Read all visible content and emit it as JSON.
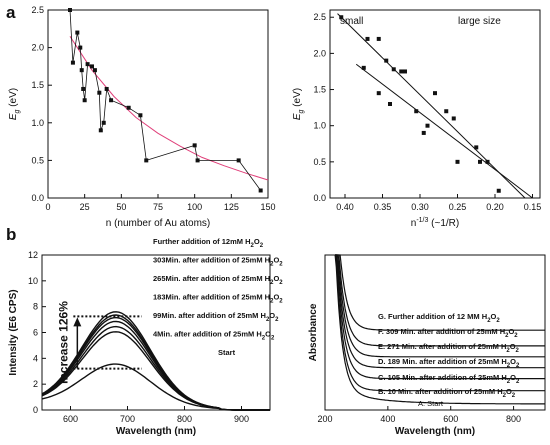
{
  "panels": [
    {
      "label": "a"
    },
    {
      "label": "b"
    }
  ],
  "chart_data": [
    {
      "id": "a-left",
      "type": "scatter",
      "xlabel": "n (number of Au atoms)",
      "ylabel": "E",
      "ylabel_sub": "g",
      "ylabel_unit": " (eV)",
      "xlim": [
        0,
        150
      ],
      "ylim": [
        0,
        2.5
      ],
      "xticks": [
        0,
        25,
        50,
        75,
        100,
        125,
        150
      ],
      "yticks": [
        0.0,
        0.5,
        1.0,
        1.5,
        2.0,
        2.5
      ],
      "x": [
        15,
        17,
        20,
        22,
        23,
        24,
        25,
        27,
        30,
        32,
        35,
        36,
        38,
        40,
        43,
        55,
        63,
        67,
        100,
        102,
        130,
        145
      ],
      "y": [
        2.5,
        1.8,
        2.2,
        2.0,
        1.7,
        1.45,
        1.3,
        1.78,
        1.75,
        1.7,
        1.4,
        0.9,
        1.0,
        1.45,
        1.3,
        1.2,
        1.1,
        0.5,
        0.7,
        0.5,
        0.5,
        0.1
      ],
      "fit_curve": {
        "x": [
          15,
          30,
          45,
          60,
          75,
          90,
          105,
          120,
          135,
          150
        ],
        "y": [
          2.15,
          1.7,
          1.35,
          1.07,
          0.86,
          0.69,
          0.54,
          0.43,
          0.33,
          0.24
        ],
        "color": "#e0407a"
      },
      "color": "#111111"
    },
    {
      "id": "a-right",
      "type": "scatter",
      "xlabel": "n",
      "xlabel_sup": "-1/3",
      "xlabel_suffix": " (~1/R)",
      "ylabel": "E",
      "ylabel_sub": "g",
      "ylabel_unit": " (eV)",
      "xlim": [
        0.42,
        0.14
      ],
      "ylim": [
        0,
        2.6
      ],
      "xticks": [
        0.4,
        0.35,
        0.3,
        0.25,
        0.2,
        0.15
      ],
      "yticks": [
        0.0,
        0.5,
        1.0,
        1.5,
        2.0,
        2.5
      ],
      "annotations": [
        {
          "text": "small"
        },
        {
          "text": "large size"
        }
      ],
      "x": [
        0.405,
        0.375,
        0.355,
        0.345,
        0.335,
        0.325,
        0.32,
        0.34,
        0.355,
        0.37,
        0.305,
        0.295,
        0.29,
        0.28,
        0.265,
        0.255,
        0.225,
        0.22,
        0.21,
        0.195,
        0.25
      ],
      "y": [
        2.5,
        1.8,
        2.2,
        1.9,
        1.78,
        1.75,
        1.75,
        1.3,
        1.45,
        2.2,
        1.2,
        0.9,
        1.0,
        1.45,
        1.2,
        1.1,
        0.7,
        0.5,
        0.5,
        0.1,
        0.5
      ],
      "fit_lines": [
        {
          "x": [
            0.41,
            0.16
          ],
          "y": [
            2.55,
            0.0
          ]
        },
        {
          "x": [
            0.385,
            0.15
          ],
          "y": [
            1.85,
            0.0
          ]
        }
      ],
      "color": "#111111"
    },
    {
      "id": "b-left",
      "type": "line",
      "xlabel": "Wavelength (nm)",
      "ylabel": "Intensity (E6 CPS)",
      "xlim": [
        550,
        950
      ],
      "ylim": [
        0,
        12
      ],
      "xticks": [
        600,
        700,
        800,
        900
      ],
      "yticks": [
        0,
        2,
        4,
        6,
        8,
        10,
        12
      ],
      "peak_x": 680,
      "series": [
        {
          "peak": 3.2,
          "label": "Start"
        },
        {
          "peak": 5.7,
          "label": "4Min. after addition of 25mM H",
          "sub": "2",
          "tail": "O",
          "sub2": "2"
        },
        {
          "peak": 6.1,
          "label": "99Min. after addition of 25mM H",
          "sub": "2",
          "tail": "O",
          "sub2": "2"
        },
        {
          "peak": 6.5,
          "label": "183Min. after addition of 25mM H",
          "sub": "2",
          "tail": "O",
          "sub2": "2"
        },
        {
          "peak": 6.8,
          "label": "265Min. after addition of 25mM H",
          "sub": "2",
          "tail": "O",
          "sub2": "2"
        },
        {
          "peak": 7.0,
          "label": "303Min. after addition of 25mM H",
          "sub": "2",
          "tail": "O",
          "sub2": "2"
        },
        {
          "peak": 7.25,
          "label": "Further addition of 12mM H",
          "sub": "2",
          "tail": "O",
          "sub2": "2"
        }
      ],
      "annotation": "Increase 126%"
    },
    {
      "id": "b-right",
      "type": "line",
      "xlabel": "Wavelength (nm)",
      "ylabel": "Absorbance",
      "xlim": [
        200,
        900
      ],
      "xticks": [
        200,
        400,
        600,
        800
      ],
      "series": [
        {
          "letter": "A.",
          "label": "Start",
          "plateau": 0.05
        },
        {
          "letter": "B.",
          "label": "10 Min. after addition of 25mM H",
          "sub": "2",
          "tail": "O",
          "sub2": "2",
          "plateau": 0.16
        },
        {
          "letter": "C.",
          "label": "105 Min. after addition of 25mM H",
          "sub": "2",
          "tail": "O",
          "sub2": "2",
          "plateau": 0.26
        },
        {
          "letter": "D.",
          "label": "189 Min. after addition of 25mM H",
          "sub": "2",
          "tail": "O",
          "sub2": "2",
          "plateau": 0.35
        },
        {
          "letter": "E.",
          "label": "271 Min. after addition of 25mM H",
          "sub": "2",
          "tail": "O",
          "sub2": "2",
          "plateau": 0.44
        },
        {
          "letter": "F.",
          "label": "309 Min. after addition of 25mM H",
          "sub": "2",
          "tail": "O",
          "sub2": "2",
          "plateau": 0.53
        },
        {
          "letter": "G.",
          "label": "Further addition of 12 MM H",
          "sub": "2",
          "tail": "O",
          "sub2": "2",
          "plateau": 0.66
        }
      ]
    }
  ]
}
